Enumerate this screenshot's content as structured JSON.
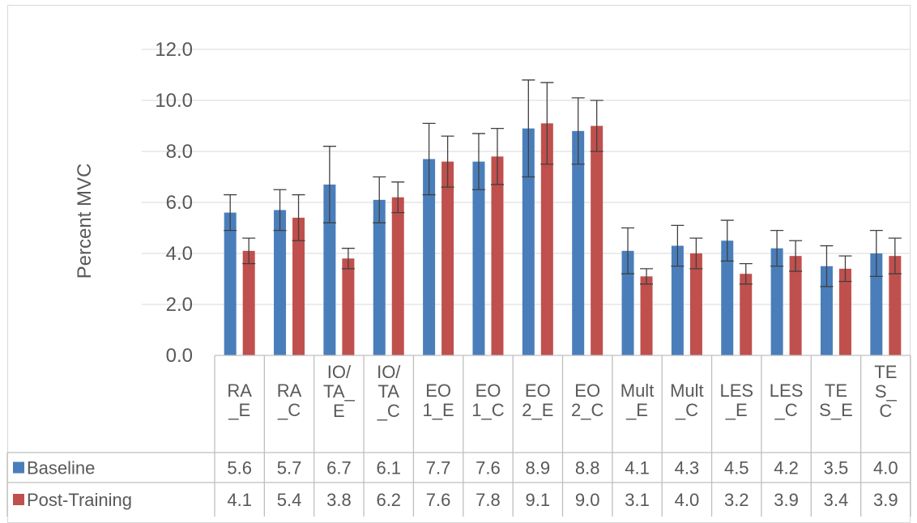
{
  "chart_data": {
    "type": "bar",
    "ylabel": "Percent MVC",
    "ylim": [
      0,
      12
    ],
    "yticks": [
      "0.0",
      "2.0",
      "4.0",
      "6.0",
      "8.0",
      "10.0",
      "12.0"
    ],
    "grid": true,
    "legend": "data-table",
    "categories": [
      "RA_E",
      "RA_C",
      "IO/TA_E",
      "IO/TA_C",
      "EO1_E",
      "EO1_C",
      "EO2_E",
      "EO2_C",
      "Mult_E",
      "Mult_C",
      "LES_E",
      "LES_C",
      "TES_E",
      "TES_C"
    ],
    "category_lines": [
      [
        "RA",
        "_E"
      ],
      [
        "RA",
        "_C"
      ],
      [
        "IO/",
        "TA_",
        "E"
      ],
      [
        "IO/",
        "TA",
        "_C"
      ],
      [
        "EO",
        "1_E"
      ],
      [
        "EO",
        "1_C"
      ],
      [
        "EO",
        "2_E"
      ],
      [
        "EO",
        "2_C"
      ],
      [
        "Mult",
        "_E"
      ],
      [
        "Mult",
        "_C"
      ],
      [
        "LES",
        "_E"
      ],
      [
        "LES",
        "_C"
      ],
      [
        "TE",
        "S_E"
      ],
      [
        "TE",
        "S_",
        "C"
      ]
    ],
    "series": [
      {
        "name": "Baseline",
        "color": "#4a7ebb",
        "values": [
          5.6,
          5.7,
          6.7,
          6.1,
          7.7,
          7.6,
          8.9,
          8.8,
          4.1,
          4.3,
          4.5,
          4.2,
          3.5,
          4.0
        ],
        "labels": [
          "5.6",
          "5.7",
          "6.7",
          "6.1",
          "7.7",
          "7.6",
          "8.9",
          "8.8",
          "4.1",
          "4.3",
          "4.5",
          "4.2",
          "3.5",
          "4.0"
        ],
        "error": [
          0.7,
          0.8,
          1.5,
          0.9,
          1.4,
          1.1,
          1.9,
          1.3,
          0.9,
          0.8,
          0.8,
          0.7,
          0.8,
          0.9
        ]
      },
      {
        "name": "Post-Training",
        "color": "#c0504d",
        "values": [
          4.1,
          5.4,
          3.8,
          6.2,
          7.6,
          7.8,
          9.1,
          9.0,
          3.1,
          4.0,
          3.2,
          3.9,
          3.4,
          3.9
        ],
        "labels": [
          "4.1",
          "5.4",
          "3.8",
          "6.2",
          "7.6",
          "7.8",
          "9.1",
          "9.0",
          "3.1",
          "4.0",
          "3.2",
          "3.9",
          "3.4",
          "3.9"
        ],
        "error": [
          0.5,
          0.9,
          0.4,
          0.6,
          1.0,
          1.1,
          1.6,
          1.0,
          0.3,
          0.6,
          0.4,
          0.6,
          0.5,
          0.7
        ]
      }
    ]
  }
}
